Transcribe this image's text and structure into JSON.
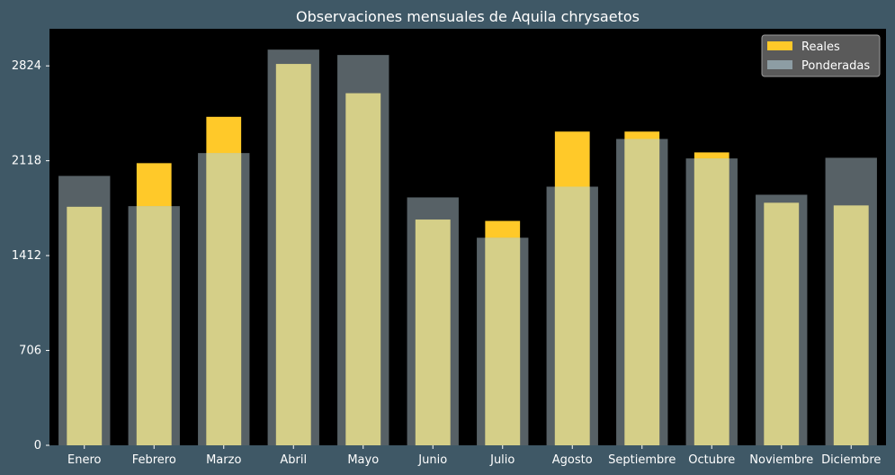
{
  "chart_data": {
    "type": "bar",
    "title": "Observaciones mensuales de Aquila chrysaetos",
    "xlabel": "",
    "ylabel": "",
    "categories": [
      "Enero",
      "Febrero",
      "Marzo",
      "Abril",
      "Mayo",
      "Junio",
      "Julio",
      "Agosto",
      "Septiembre",
      "Octubre",
      "Noviembre",
      "Diciembre"
    ],
    "series": [
      {
        "name": "Reales",
        "color": "#ffc929",
        "values": [
          1775,
          2100,
          2445,
          2838,
          2620,
          1680,
          1670,
          2335,
          2335,
          2180,
          1805,
          1785
        ]
      },
      {
        "name": "Ponderadas",
        "color": "#8d9da4",
        "values": [
          2005,
          1780,
          2175,
          2945,
          2905,
          1845,
          1545,
          1925,
          2280,
          2135,
          1865,
          2140
        ]
      }
    ],
    "yticks": [
      0,
      706,
      1412,
      2118,
      2824
    ],
    "ylim": [
      0,
      3100
    ],
    "grid": false,
    "legend_position": "top-right",
    "plot_background": "#000000",
    "overlap_color": "#d5cf88"
  }
}
